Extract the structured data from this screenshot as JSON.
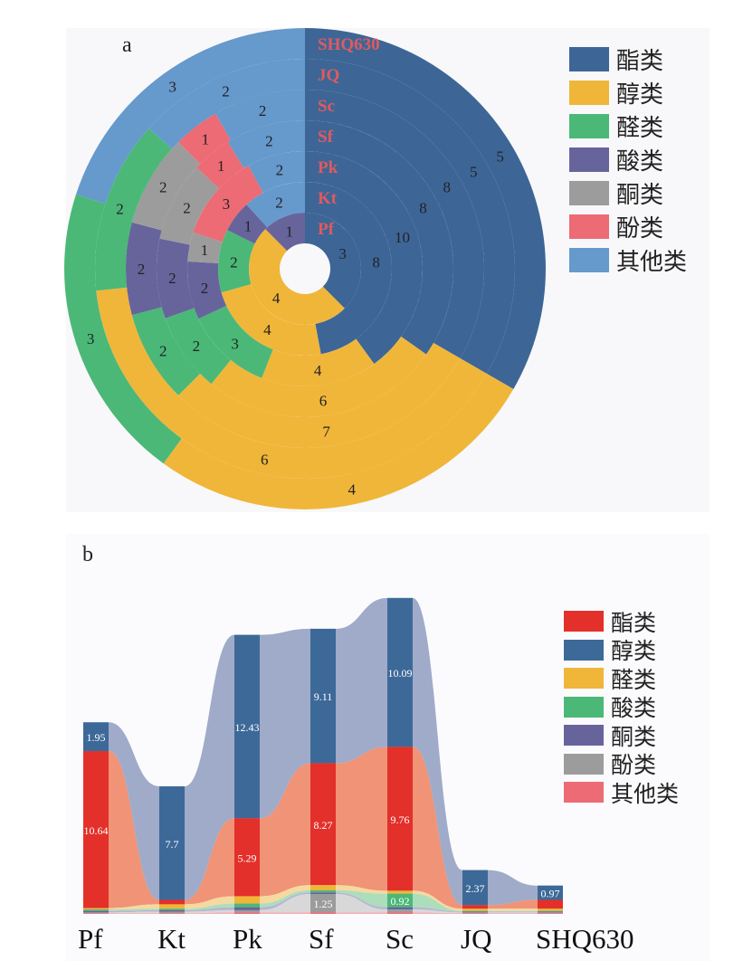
{
  "chart_data": [
    {
      "id": "a",
      "type": "pie",
      "panel_label": "a",
      "legend": [
        "酯类",
        "醇类",
        "醛类",
        "酸类",
        "酮类",
        "酚类",
        "其他类"
      ],
      "colors": [
        "#3d6696",
        "#f0b63a",
        "#4bb878",
        "#67649c",
        "#9c9c9c",
        "#ec6b74",
        "#6699cc"
      ],
      "ring_labels": [
        "Pf",
        "Kt",
        "Pk",
        "Sf",
        "Sc",
        "JQ",
        "SHQ630"
      ],
      "ring_label_color": "#e05a60",
      "rings": [
        {
          "name": "Pf",
          "values": [
            {
              "cls": 0,
              "value": 3
            },
            {
              "cls": 1,
              "value": 4
            },
            {
              "cls": 3,
              "value": 1
            }
          ]
        },
        {
          "name": "Kt",
          "values": [
            {
              "cls": 0,
              "value": 8
            },
            {
              "cls": 1,
              "value": 4
            },
            {
              "cls": 2,
              "value": 2
            },
            {
              "cls": 3,
              "value": 1
            },
            {
              "cls": 6,
              "value": 2
            }
          ]
        },
        {
          "name": "Pk",
          "values": [
            {
              "cls": 0,
              "value": 10
            },
            {
              "cls": 1,
              "value": 4
            },
            {
              "cls": 2,
              "value": 3
            },
            {
              "cls": 3,
              "value": 2
            },
            {
              "cls": 4,
              "value": 1
            },
            {
              "cls": 5,
              "value": 3
            },
            {
              "cls": 6,
              "value": 2
            }
          ]
        },
        {
          "name": "Sf",
          "values": [
            {
              "cls": 0,
              "value": 8
            },
            {
              "cls": 1,
              "value": 6
            },
            {
              "cls": 2,
              "value": 2
            },
            {
              "cls": 3,
              "value": 2
            },
            {
              "cls": 4,
              "value": 2
            },
            {
              "cls": 5,
              "value": 1
            },
            {
              "cls": 6,
              "value": 2
            }
          ]
        },
        {
          "name": "Sc",
          "values": [
            {
              "cls": 0,
              "value": 8
            },
            {
              "cls": 1,
              "value": 7
            },
            {
              "cls": 2,
              "value": 2
            },
            {
              "cls": 3,
              "value": 2
            },
            {
              "cls": 4,
              "value": 2
            },
            {
              "cls": 5,
              "value": 1
            },
            {
              "cls": 6,
              "value": 2
            }
          ]
        },
        {
          "name": "JQ",
          "values": [
            {
              "cls": 0,
              "value": 5
            },
            {
              "cls": 1,
              "value": 6
            },
            {
              "cls": 2,
              "value": 2
            },
            {
              "cls": 6,
              "value": 2
            }
          ]
        },
        {
          "name": "SHQ630",
          "values": [
            {
              "cls": 0,
              "value": 5
            },
            {
              "cls": 1,
              "value": 4
            },
            {
              "cls": 2,
              "value": 3
            },
            {
              "cls": 6,
              "value": 3
            }
          ]
        }
      ]
    },
    {
      "id": "b",
      "type": "area",
      "panel_label": "b",
      "categories": [
        "Pf",
        "Kt",
        "Pk",
        "Sf",
        "Sc",
        "JQ",
        "SHQ630"
      ],
      "series": [
        {
          "name": "酯类",
          "color": "#e3302a",
          "band_color": "#ef8d70",
          "values": [
            10.64,
            0.3,
            5.29,
            8.27,
            9.76,
            0.25,
            0.6
          ]
        },
        {
          "name": "醇类",
          "color": "#3d6998",
          "band_color": "#9aa6c6",
          "values": [
            1.95,
            7.7,
            12.43,
            9.11,
            10.09,
            2.37,
            0.97
          ]
        },
        {
          "name": "醛类",
          "color": "#f0b63a",
          "band_color": "#f6d79a",
          "values": [
            0.1,
            0.3,
            0.5,
            0.35,
            0.2,
            0.15,
            0.15
          ]
        },
        {
          "name": "酸类",
          "color": "#4cb878",
          "band_color": "#a8dcb8",
          "values": [
            0.1,
            0.1,
            0.25,
            0.15,
            0.92,
            0.05,
            0.05
          ]
        },
        {
          "name": "酮类",
          "color": "#67649c",
          "band_color": "#b3b1d0",
          "values": [
            0.1,
            0.1,
            0.2,
            0.1,
            0.15,
            0.05,
            0.05
          ]
        },
        {
          "name": "酚类",
          "color": "#9c9c9c",
          "band_color": "#d6d6d6",
          "values": [
            0.05,
            0.1,
            0.15,
            1.25,
            0.2,
            0.05,
            0.05
          ]
        },
        {
          "name": "其他类",
          "color": "#ec6b74",
          "band_color": "#f3a9ad",
          "values": [
            0.05,
            0.05,
            0.1,
            0.1,
            0.1,
            0.05,
            0.05
          ]
        }
      ],
      "labels": [
        {
          "series": 0,
          "index": 0,
          "text": "10.64"
        },
        {
          "series": 1,
          "index": 0,
          "text": "1.95"
        },
        {
          "series": 1,
          "index": 1,
          "text": "7.7"
        },
        {
          "series": 0,
          "index": 2,
          "text": "5.29"
        },
        {
          "series": 1,
          "index": 2,
          "text": "12.43"
        },
        {
          "series": 0,
          "index": 3,
          "text": "8.27"
        },
        {
          "series": 1,
          "index": 3,
          "text": "9.11"
        },
        {
          "series": 5,
          "index": 3,
          "text": "1.25"
        },
        {
          "series": 0,
          "index": 4,
          "text": "9.76"
        },
        {
          "series": 1,
          "index": 4,
          "text": "10.09"
        },
        {
          "series": 3,
          "index": 4,
          "text": "0.92"
        },
        {
          "series": 1,
          "index": 5,
          "text": "2.37"
        },
        {
          "series": 1,
          "index": 6,
          "text": "0.97"
        }
      ]
    }
  ]
}
